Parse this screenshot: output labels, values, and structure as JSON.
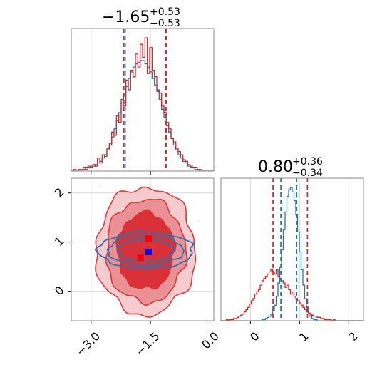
{
  "chart_data": [
    {
      "type": "histogram",
      "panel": "marginal-param-1",
      "title": {
        "value": "−1.65",
        "plus": "+0.53",
        "minus": "−0.53"
      },
      "xlim": [
        -3.5,
        0.1
      ],
      "grid": true,
      "x_ticks": [
        -3.0,
        -1.5,
        0.0
      ],
      "vlines": {
        "blue": [
          -2.18,
          -2.14,
          -1.1
        ],
        "red": [
          -2.18,
          -1.12
        ]
      },
      "series": [
        {
          "color": "#1f77b4",
          "bin_edges_range": [
            -3.5,
            0.1
          ],
          "counts": [
            0,
            0,
            0,
            1,
            1,
            1,
            2,
            2,
            3,
            3,
            4,
            5,
            6,
            8,
            10,
            13,
            17,
            21,
            26,
            31,
            36,
            42,
            47,
            52,
            57,
            61,
            64,
            66,
            67,
            68,
            68,
            66,
            64,
            61,
            57,
            53,
            49,
            44,
            38,
            33,
            28,
            24,
            20,
            16,
            13,
            10,
            8,
            6,
            5,
            3,
            2,
            2,
            1,
            1,
            0,
            0,
            0,
            0,
            0,
            0
          ]
        },
        {
          "color": "#d62728",
          "bin_edges_range": [
            -3.5,
            0.1
          ],
          "counts": [
            0,
            1,
            0,
            1,
            0,
            2,
            1,
            3,
            2,
            4,
            3,
            8,
            5,
            10,
            9,
            14,
            16,
            24,
            22,
            34,
            30,
            44,
            40,
            56,
            50,
            62,
            58,
            72,
            64,
            78,
            70,
            82,
            60,
            76,
            62,
            58,
            50,
            48,
            40,
            36,
            30,
            26,
            20,
            18,
            14,
            12,
            10,
            7,
            6,
            4,
            3,
            2,
            2,
            1,
            1,
            0,
            0,
            0,
            0,
            0
          ]
        }
      ]
    },
    {
      "type": "contour",
      "panel": "joint",
      "xlim": [
        -3.5,
        0.1
      ],
      "ylim": [
        -0.6,
        2.3
      ],
      "grid": true,
      "x_ticks": [
        -3.0,
        -1.5,
        0.0
      ],
      "y_ticks": [
        0,
        1,
        2
      ],
      "series": [
        {
          "color": "#d62728",
          "center": [
            -1.62,
            0.82
          ],
          "levels_sigma": [
            [
              0.72,
              0.78
            ],
            [
              1.0,
              1.05
            ],
            [
              1.25,
              1.3
            ]
          ]
        },
        {
          "color": "#1f77b4",
          "center": [
            -1.62,
            0.83
          ],
          "levels_sigma": [
            [
              0.7,
              0.22
            ],
            [
              0.95,
              0.3
            ],
            [
              1.2,
              0.37
            ]
          ]
        }
      ],
      "markers": [
        {
          "color": "#0000ff",
          "x": -1.55,
          "y": 0.8
        },
        {
          "color": "#ff0000",
          "x": -1.55,
          "y": 1.07
        },
        {
          "color": "#ff0000",
          "x": -1.75,
          "y": 0.68
        }
      ]
    },
    {
      "type": "histogram",
      "panel": "marginal-param-2",
      "title": {
        "value": "0.80",
        "plus": "+0.36",
        "minus": "−0.34"
      },
      "xlim": [
        -0.6,
        2.3
      ],
      "grid": true,
      "x_ticks": [
        0,
        1,
        2
      ],
      "vlines": {
        "blue": [
          0.62,
          0.94
        ],
        "red": [
          0.46,
          1.16
        ]
      },
      "series": [
        {
          "color": "#1f77b4",
          "bin_edges_range": [
            -0.6,
            2.3
          ],
          "counts": [
            0,
            0,
            0,
            0,
            0,
            0,
            0,
            0,
            0,
            0,
            0,
            0,
            0,
            0,
            0,
            0,
            0,
            0,
            0,
            0,
            0,
            0,
            0,
            1,
            1,
            2,
            3,
            4,
            6,
            9,
            14,
            22,
            34,
            48,
            64,
            82,
            98,
            112,
            118,
            120,
            116,
            108,
            96,
            80,
            62,
            46,
            32,
            20,
            12,
            7,
            4,
            2,
            1,
            1,
            0,
            0,
            0,
            0,
            0,
            0,
            0,
            0,
            0,
            0,
            0,
            0,
            0,
            0,
            0,
            0,
            0,
            0,
            0,
            0,
            0,
            0,
            0,
            0,
            0,
            0
          ]
        },
        {
          "color": "#d62728",
          "bin_edges_range": [
            -0.6,
            2.3
          ],
          "counts": [
            0,
            0,
            0,
            1,
            0,
            1,
            1,
            2,
            2,
            3,
            4,
            5,
            6,
            8,
            10,
            12,
            15,
            18,
            20,
            24,
            26,
            28,
            32,
            36,
            38,
            40,
            42,
            44,
            46,
            44,
            42,
            46,
            40,
            38,
            36,
            34,
            30,
            32,
            28,
            24,
            26,
            22,
            20,
            18,
            16,
            14,
            12,
            10,
            8,
            7,
            6,
            5,
            4,
            4,
            3,
            3,
            2,
            2,
            1,
            1,
            1,
            1,
            0,
            1,
            0,
            0,
            0,
            0,
            0,
            0,
            0,
            0,
            0,
            0,
            0,
            0,
            0,
            0,
            0,
            0
          ]
        }
      ]
    }
  ]
}
